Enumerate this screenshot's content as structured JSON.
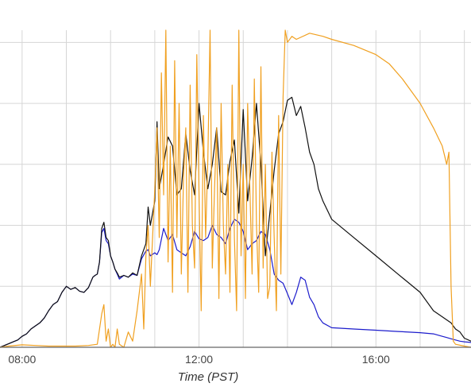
{
  "chart_data": {
    "type": "line",
    "xlabel": "Time (PST)",
    "ylabel": "",
    "title": "",
    "xlim": [
      7.5,
      18.15
    ],
    "ylim": [
      0,
      520
    ],
    "x_ticks": [
      {
        "value": 8,
        "label": "08:00"
      },
      {
        "value": 12,
        "label": "12:00"
      },
      {
        "value": 16,
        "label": "16:00"
      }
    ],
    "y_gridlines": [
      0,
      100,
      200,
      300,
      400,
      500
    ],
    "x_gridlines": [
      8,
      9,
      10,
      11,
      12,
      13,
      14,
      15,
      16,
      17,
      18
    ],
    "grid": true,
    "series": [
      {
        "color": "#1c1ccc",
        "x": [
          7.5,
          7.6,
          7.7,
          7.8,
          7.9,
          8.0,
          8.1,
          8.2,
          8.3,
          8.4,
          8.5,
          8.6,
          8.7,
          8.8,
          8.9,
          9.0,
          9.1,
          9.2,
          9.3,
          9.4,
          9.5,
          9.6,
          9.65,
          9.7,
          9.75,
          9.8,
          9.85,
          9.9,
          9.95,
          10.0,
          10.05,
          10.1,
          10.15,
          10.2,
          10.3,
          10.4,
          10.5,
          10.6,
          10.7,
          10.8,
          10.85,
          10.9,
          11.0,
          11.05,
          11.1,
          11.2,
          11.3,
          11.4,
          11.5,
          11.6,
          11.7,
          11.8,
          11.9,
          12.0,
          12.1,
          12.2,
          12.3,
          12.4,
          12.5,
          12.6,
          12.7,
          12.8,
          12.9,
          13.0,
          13.1,
          13.2,
          13.3,
          13.4,
          13.5,
          13.6,
          13.7,
          13.8,
          13.9,
          14.0,
          14.1,
          14.2,
          14.3,
          14.4,
          14.5,
          14.6,
          14.7,
          14.8,
          15.0,
          15.5,
          16.0,
          16.5,
          17.0,
          17.3,
          17.5,
          17.6,
          17.7,
          17.8,
          17.9,
          18.0,
          18.15
        ],
        "y": [
          0,
          3,
          6,
          9,
          12,
          18,
          22,
          30,
          35,
          40,
          48,
          60,
          70,
          75,
          90,
          100,
          95,
          98,
          92,
          90,
          98,
          115,
          118,
          120,
          140,
          188,
          195,
          175,
          170,
          150,
          140,
          128,
          120,
          112,
          118,
          115,
          120,
          118,
          145,
          158,
          160,
          150,
          155,
          152,
          160,
          195,
          175,
          185,
          160,
          155,
          150,
          165,
          190,
          178,
          175,
          180,
          200,
          185,
          180,
          170,
          195,
          210,
          205,
          190,
          160,
          170,
          175,
          190,
          185,
          160,
          120,
          110,
          105,
          88,
          70,
          90,
          115,
          110,
          82,
          70,
          50,
          40,
          32,
          30,
          28,
          26,
          24,
          22,
          18,
          16,
          14,
          12,
          10,
          9,
          8
        ]
      },
      {
        "color": "#111111",
        "x": [
          7.5,
          7.6,
          7.7,
          7.8,
          7.9,
          8.0,
          8.1,
          8.2,
          8.3,
          8.4,
          8.5,
          8.6,
          8.7,
          8.8,
          8.9,
          9.0,
          9.1,
          9.2,
          9.3,
          9.4,
          9.5,
          9.6,
          9.65,
          9.7,
          9.75,
          9.8,
          9.85,
          9.9,
          9.95,
          10.0,
          10.05,
          10.1,
          10.15,
          10.2,
          10.3,
          10.4,
          10.5,
          10.6,
          10.7,
          10.8,
          10.85,
          10.9,
          11.0,
          11.05,
          11.1,
          11.2,
          11.3,
          11.4,
          11.5,
          11.6,
          11.7,
          11.8,
          11.9,
          12.0,
          12.1,
          12.2,
          12.3,
          12.4,
          12.5,
          12.6,
          12.7,
          12.8,
          12.9,
          13.0,
          13.1,
          13.2,
          13.3,
          13.4,
          13.5,
          13.6,
          13.7,
          13.8,
          13.85,
          13.9,
          14.0,
          14.1,
          14.2,
          14.3,
          14.4,
          14.5,
          14.6,
          14.7,
          14.8,
          15.0,
          15.5,
          16.0,
          16.5,
          17.0,
          17.3,
          17.5,
          17.6,
          17.7,
          17.8,
          17.9,
          18.0,
          18.15
        ],
        "y": [
          0,
          3,
          6,
          9,
          12,
          18,
          22,
          30,
          35,
          40,
          48,
          60,
          70,
          75,
          90,
          100,
          95,
          98,
          92,
          90,
          98,
          115,
          118,
          120,
          140,
          195,
          205,
          180,
          175,
          150,
          140,
          128,
          122,
          115,
          118,
          115,
          122,
          118,
          150,
          170,
          230,
          200,
          240,
          370,
          260,
          300,
          345,
          330,
          250,
          260,
          350,
          290,
          250,
          400,
          320,
          260,
          300,
          360,
          255,
          250,
          305,
          340,
          220,
          390,
          240,
          310,
          400,
          300,
          150,
          220,
          290,
          350,
          360,
          370,
          405,
          410,
          380,
          395,
          360,
          320,
          300,
          260,
          240,
          210,
          180,
          150,
          120,
          90,
          60,
          50,
          45,
          40,
          30,
          25,
          15,
          10
        ]
      },
      {
        "color": "#f0a020",
        "x": [
          7.5,
          7.7,
          8.0,
          8.3,
          8.6,
          9.0,
          9.2,
          9.5,
          9.7,
          9.8,
          9.85,
          9.9,
          9.95,
          10.0,
          10.05,
          10.1,
          10.15,
          10.2,
          10.3,
          10.4,
          10.5,
          10.6,
          10.7,
          10.75,
          10.8,
          10.85,
          10.9,
          11.0,
          11.05,
          11.1,
          11.15,
          11.2,
          11.25,
          11.3,
          11.35,
          11.4,
          11.45,
          11.5,
          11.55,
          11.6,
          11.65,
          11.7,
          11.75,
          11.8,
          11.85,
          11.9,
          11.95,
          12.0,
          12.05,
          12.1,
          12.15,
          12.2,
          12.25,
          12.3,
          12.35,
          12.4,
          12.45,
          12.5,
          12.55,
          12.6,
          12.65,
          12.7,
          12.75,
          12.8,
          12.85,
          12.9,
          12.95,
          13.0,
          13.05,
          13.1,
          13.15,
          13.2,
          13.25,
          13.3,
          13.35,
          13.4,
          13.45,
          13.5,
          13.55,
          13.6,
          13.65,
          13.7,
          13.75,
          13.8,
          13.85,
          13.9,
          13.95,
          14.0,
          14.1,
          14.2,
          14.5,
          14.8,
          15.0,
          15.5,
          16.0,
          16.3,
          16.6,
          17.0,
          17.3,
          17.5,
          17.6,
          17.65,
          17.7,
          17.75,
          17.8,
          18.0,
          18.15
        ],
        "y": [
          0,
          2,
          4,
          3,
          2,
          2,
          2,
          3,
          5,
          55,
          70,
          10,
          30,
          0,
          5,
          0,
          30,
          5,
          0,
          25,
          10,
          60,
          120,
          30,
          150,
          200,
          100,
          260,
          360,
          180,
          450,
          250,
          520,
          140,
          330,
          90,
          470,
          180,
          400,
          120,
          280,
          360,
          90,
          430,
          200,
          130,
          480,
          250,
          60,
          380,
          180,
          310,
          520,
          130,
          260,
          360,
          80,
          400,
          200,
          120,
          300,
          90,
          430,
          180,
          60,
          520,
          150,
          300,
          80,
          400,
          260,
          120,
          440,
          200,
          90,
          460,
          130,
          300,
          80,
          100,
          320,
          180,
          60,
          380,
          120,
          410,
          520,
          500,
          510,
          505,
          515,
          510,
          505,
          495,
          480,
          465,
          440,
          400,
          360,
          330,
          300,
          320,
          100,
          10,
          5,
          2,
          0
        ]
      }
    ]
  }
}
